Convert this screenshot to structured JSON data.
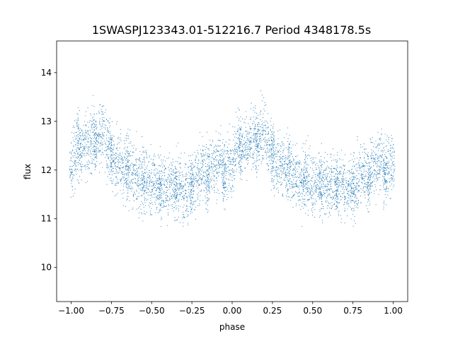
{
  "chart_data": {
    "type": "scatter",
    "title": "1SWASPJ123343.01-512216.7 Period 4348178.5s",
    "xlabel": "phase",
    "ylabel": "flux",
    "xlim": [
      -1.09,
      1.09
    ],
    "ylim": [
      9.3,
      14.65
    ],
    "xticks": [
      -1.0,
      -0.75,
      -0.5,
      -0.25,
      0.0,
      0.25,
      0.5,
      0.75,
      1.0
    ],
    "xtick_labels": [
      "−1.00",
      "−0.75",
      "−0.50",
      "−0.25",
      "0.00",
      "0.25",
      "0.50",
      "0.75",
      "1.00"
    ],
    "yticks": [
      10,
      11,
      12,
      13,
      14
    ],
    "ytick_labels": [
      "10",
      "11",
      "12",
      "13",
      "14"
    ],
    "grid": false,
    "marker_color": "#1f77b4",
    "series": [
      {
        "x": [
          -1.0,
          -0.98,
          -0.96,
          -0.95,
          -0.94,
          -0.92,
          -0.9,
          -0.88,
          -0.86,
          -0.85,
          -0.84,
          -0.82,
          -0.8,
          -0.78,
          -0.76,
          -0.75,
          -0.74,
          -0.72,
          -0.7,
          -0.68,
          -0.66,
          -0.65,
          -0.64,
          -0.62,
          -0.6,
          -0.58,
          -0.56,
          -0.55,
          -0.54,
          -0.52,
          -0.5,
          -0.48,
          -0.46,
          -0.45,
          -0.44,
          -0.42,
          -0.4,
          -0.38,
          -0.36,
          -0.35,
          -0.34,
          -0.32,
          -0.3,
          -0.28,
          -0.26,
          -0.25,
          -0.24,
          -0.22,
          -0.2,
          -0.18,
          -0.16,
          -0.15,
          -0.14,
          -0.12,
          -0.1,
          -0.08,
          -0.06,
          -0.05,
          -0.04,
          -0.02,
          0.0,
          0.02,
          0.04,
          0.05,
          0.06,
          0.08,
          0.1,
          0.12,
          0.14,
          0.15,
          0.16,
          0.18,
          0.2,
          0.22,
          0.24,
          0.25,
          0.26,
          0.28,
          0.3,
          0.32,
          0.34,
          0.35,
          0.36,
          0.38,
          0.4,
          0.42,
          0.44,
          0.45,
          0.46,
          0.48,
          0.5,
          0.52,
          0.54,
          0.55,
          0.56,
          0.58,
          0.6,
          0.62,
          0.64,
          0.65,
          0.66,
          0.68,
          0.7,
          0.72,
          0.74,
          0.75,
          0.76,
          0.78,
          0.8,
          0.82,
          0.84,
          0.85,
          0.86,
          0.88,
          0.9,
          0.92,
          0.94,
          0.95,
          0.96,
          0.98,
          1.0
        ],
        "y": [
          12.1,
          12.3,
          12.6,
          12.5,
          12.4,
          12.5,
          12.5,
          12.6,
          12.7,
          12.5,
          12.6,
          12.7,
          12.8,
          12.5,
          12.5,
          12.3,
          12.3,
          12.1,
          12.2,
          12.0,
          12.0,
          12.1,
          12.0,
          11.9,
          11.9,
          11.8,
          11.7,
          11.9,
          11.8,
          11.8,
          11.7,
          11.8,
          11.7,
          11.6,
          11.7,
          11.7,
          11.6,
          11.8,
          11.7,
          11.6,
          11.7,
          11.7,
          11.6,
          11.6,
          11.7,
          11.7,
          11.6,
          11.8,
          11.9,
          12.0,
          11.9,
          11.8,
          12.0,
          12.1,
          12.1,
          12.2,
          12.0,
          11.9,
          12.0,
          12.1,
          12.1,
          12.3,
          12.6,
          12.5,
          12.4,
          12.5,
          12.5,
          12.6,
          12.7,
          12.5,
          12.6,
          12.7,
          12.8,
          12.5,
          12.5,
          12.3,
          12.3,
          12.1,
          12.2,
          12.0,
          12.0,
          12.1,
          12.0,
          11.9,
          11.9,
          11.8,
          11.7,
          11.9,
          11.8,
          11.8,
          11.7,
          11.8,
          11.7,
          11.6,
          11.7,
          11.7,
          11.6,
          11.8,
          11.7,
          11.6,
          11.7,
          11.7,
          11.6,
          11.6,
          11.7,
          11.7,
          11.6,
          11.8,
          11.9,
          12.0,
          11.9,
          11.8,
          12.0,
          12.1,
          12.1,
          12.2,
          12.0,
          11.9,
          12.0,
          12.1,
          12.1
        ],
        "scatter_spread": 0.9
      }
    ]
  }
}
